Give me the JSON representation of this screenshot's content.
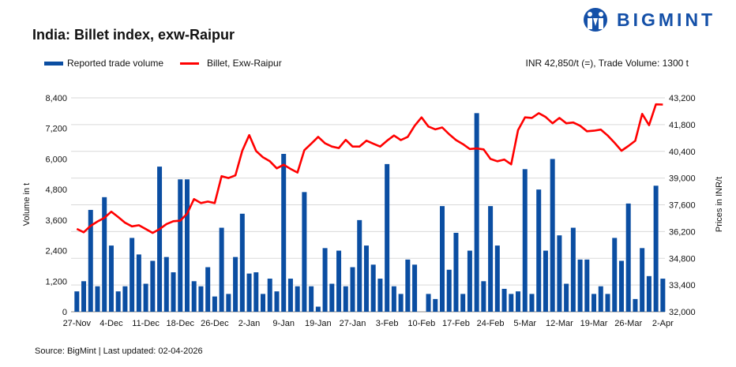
{
  "header": {
    "title": "India: Billet index, exw-Raipur",
    "summary": "INR 42,850/t (=), Trade Volume: 1300 t"
  },
  "logo": {
    "text": "BIGMINT",
    "color": "#1450a8"
  },
  "footer": {
    "source": "Source: BigMint | Last updated: 02-04-2026"
  },
  "chart_data": {
    "type": "bar+line",
    "title": "India: Billet index, exw-Raipur",
    "legend_position": "top-left",
    "grid": true,
    "ylabel": "Volume in t",
    "y2label": "Prices in INR/t",
    "ylim": [
      0,
      8400
    ],
    "y_ticks": [
      "0",
      "1,200",
      "2,400",
      "3,600",
      "4,800",
      "6,000",
      "7,200",
      "8,400"
    ],
    "y2lim": [
      32000,
      43200
    ],
    "y2_ticks": [
      "32,000",
      "33,400",
      "34,800",
      "36,200",
      "37,600",
      "39,000",
      "40,400",
      "41,800",
      "43,200"
    ],
    "x_tick_labels": [
      "27-Nov",
      "4-Dec",
      "11-Dec",
      "18-Dec",
      "26-Dec",
      "2-Jan",
      "9-Jan",
      "19-Jan",
      "27-Jan",
      "3-Feb",
      "10-Feb",
      "17-Feb",
      "24-Feb",
      "5-Mar",
      "12-Mar",
      "19-Mar",
      "26-Mar",
      "2-Apr"
    ],
    "series": [
      {
        "name": "Reported trade volume",
        "type": "bar",
        "color": "#0b4ea2",
        "axis": "left",
        "values": [
          800,
          1200,
          4000,
          1000,
          4500,
          2600,
          800,
          1000,
          2900,
          2250,
          1100,
          2000,
          5700,
          2150,
          1550,
          5200,
          5200,
          1200,
          1000,
          1750,
          600,
          3300,
          700,
          2150,
          3850,
          1500,
          1550,
          700,
          1300,
          800,
          6200,
          1300,
          1000,
          4700,
          1000,
          200,
          2500,
          1100,
          2400,
          1000,
          1750,
          3600,
          2600,
          1850,
          1300,
          5800,
          1000,
          700,
          2050,
          1850,
          0,
          700,
          500,
          4150,
          1650,
          3100,
          700,
          2400,
          7800,
          1200,
          4150,
          2600,
          900,
          700,
          800,
          5600,
          700,
          4800,
          2400,
          6000,
          3000,
          1100,
          3300,
          2050,
          2050,
          700,
          1000,
          700,
          2900,
          2000,
          4250,
          500,
          2500,
          1400,
          4950,
          1300
        ]
      },
      {
        "name": "Billet, Exw-Raipur",
        "type": "line",
        "color": "#ff0000",
        "axis": "right",
        "values": [
          36340,
          36160,
          36500,
          36730,
          36920,
          37240,
          36960,
          36660,
          36470,
          36530,
          36330,
          36130,
          36330,
          36590,
          36740,
          36770,
          37140,
          37900,
          37690,
          37770,
          37690,
          39100,
          39000,
          39140,
          40430,
          41250,
          40420,
          40090,
          39880,
          39510,
          39700,
          39480,
          39290,
          40460,
          40800,
          41160,
          40820,
          40650,
          40570,
          41000,
          40650,
          40650,
          40960,
          40800,
          40650,
          40960,
          41230,
          40990,
          41160,
          41740,
          42180,
          41700,
          41550,
          41650,
          41300,
          40990,
          40780,
          40520,
          40550,
          40500,
          40000,
          39880,
          39970,
          39720,
          41510,
          42180,
          42150,
          42400,
          42200,
          41870,
          42150,
          41870,
          41910,
          41740,
          41450,
          41480,
          41540,
          41230,
          40850,
          40430,
          40680,
          40950,
          42360,
          41770,
          42860,
          42850
        ]
      }
    ]
  }
}
